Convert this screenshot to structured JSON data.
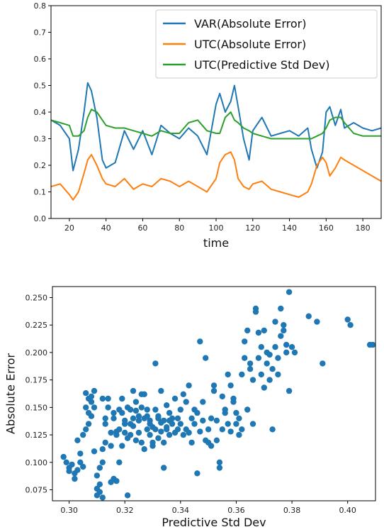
{
  "chart_data": [
    {
      "type": "line",
      "xlabel": "time",
      "ylabel": "",
      "xlim": [
        10,
        190
      ],
      "ylim": [
        0.0,
        0.8
      ],
      "xticks": [
        "20",
        "40",
        "60",
        "80",
        "100",
        "120",
        "140",
        "160",
        "180"
      ],
      "yticks": [
        "0.0",
        "0.1",
        "0.2",
        "0.3",
        "0.4",
        "0.5",
        "0.6",
        "0.7",
        "0.8"
      ],
      "legend_position": "top-right",
      "grid": false,
      "x": [
        10,
        15,
        20,
        22,
        25,
        28,
        30,
        32,
        35,
        38,
        40,
        45,
        50,
        55,
        60,
        65,
        70,
        75,
        80,
        85,
        90,
        95,
        100,
        102,
        105,
        108,
        110,
        112,
        115,
        118,
        120,
        125,
        130,
        135,
        140,
        145,
        150,
        152,
        155,
        158,
        160,
        162,
        165,
        168,
        170,
        175,
        180,
        185,
        190
      ],
      "series": [
        {
          "name": "VAR(Absolute Error)",
          "color": "#1f77b4",
          "values": [
            0.37,
            0.35,
            0.3,
            0.18,
            0.26,
            0.4,
            0.51,
            0.48,
            0.38,
            0.22,
            0.19,
            0.21,
            0.33,
            0.26,
            0.33,
            0.24,
            0.35,
            0.32,
            0.3,
            0.34,
            0.31,
            0.24,
            0.43,
            0.47,
            0.4,
            0.44,
            0.5,
            0.42,
            0.3,
            0.22,
            0.33,
            0.38,
            0.31,
            0.32,
            0.33,
            0.31,
            0.34,
            0.26,
            0.19,
            0.25,
            0.4,
            0.42,
            0.35,
            0.41,
            0.34,
            0.36,
            0.34,
            0.33,
            0.34
          ]
        },
        {
          "name": "UTC(Absolute Error)",
          "color": "#ff7f0e",
          "values": [
            0.12,
            0.13,
            0.09,
            0.07,
            0.1,
            0.17,
            0.22,
            0.24,
            0.2,
            0.15,
            0.13,
            0.12,
            0.15,
            0.11,
            0.13,
            0.12,
            0.15,
            0.14,
            0.12,
            0.14,
            0.12,
            0.1,
            0.15,
            0.21,
            0.24,
            0.25,
            0.22,
            0.15,
            0.12,
            0.11,
            0.13,
            0.14,
            0.11,
            0.1,
            0.09,
            0.08,
            0.1,
            0.13,
            0.2,
            0.23,
            0.21,
            0.16,
            0.19,
            0.23,
            0.22,
            0.2,
            0.18,
            0.16,
            0.14
          ]
        },
        {
          "name": "UTC(Predictive Std Dev)",
          "color": "#2ca02c",
          "values": [
            0.37,
            0.36,
            0.35,
            0.31,
            0.31,
            0.33,
            0.38,
            0.41,
            0.4,
            0.37,
            0.35,
            0.34,
            0.34,
            0.33,
            0.32,
            0.31,
            0.33,
            0.32,
            0.32,
            0.36,
            0.37,
            0.33,
            0.32,
            0.32,
            0.38,
            0.4,
            0.37,
            0.36,
            0.34,
            0.33,
            0.32,
            0.31,
            0.3,
            0.3,
            0.3,
            0.3,
            0.3,
            0.3,
            0.31,
            0.32,
            0.34,
            0.37,
            0.38,
            0.38,
            0.36,
            0.32,
            0.31,
            0.31,
            0.31
          ]
        }
      ]
    },
    {
      "type": "scatter",
      "xlabel": "Predictive Std Dev",
      "ylabel": "Absolute Error",
      "xlim": [
        0.294,
        0.41
      ],
      "ylim": [
        0.065,
        0.26
      ],
      "xticks": [
        "0.30",
        "0.32",
        "0.34",
        "0.36",
        "0.38",
        "0.40"
      ],
      "yticks": [
        "0.075",
        "0.100",
        "0.125",
        "0.150",
        "0.175",
        "0.200",
        "0.225",
        "0.250"
      ],
      "grid": false,
      "color": "#1f77b4",
      "points": [
        [
          0.298,
          0.105
        ],
        [
          0.299,
          0.1
        ],
        [
          0.3,
          0.095
        ],
        [
          0.3,
          0.092
        ],
        [
          0.301,
          0.098
        ],
        [
          0.302,
          0.09
        ],
        [
          0.302,
          0.085
        ],
        [
          0.303,
          0.093
        ],
        [
          0.303,
          0.12
        ],
        [
          0.304,
          0.108
        ],
        [
          0.304,
          0.1
        ],
        [
          0.305,
          0.096
        ],
        [
          0.305,
          0.125
        ],
        [
          0.306,
          0.13
        ],
        [
          0.306,
          0.15
        ],
        [
          0.306,
          0.163
        ],
        [
          0.307,
          0.135
        ],
        [
          0.307,
          0.158
        ],
        [
          0.307,
          0.145
        ],
        [
          0.308,
          0.16
        ],
        [
          0.308,
          0.155
        ],
        [
          0.308,
          0.142
        ],
        [
          0.309,
          0.15
        ],
        [
          0.309,
          0.165
        ],
        [
          0.309,
          0.11
        ],
        [
          0.31,
          0.088
        ],
        [
          0.31,
          0.076
        ],
        [
          0.31,
          0.07
        ],
        [
          0.311,
          0.08
        ],
        [
          0.311,
          0.073
        ],
        [
          0.311,
          0.095
        ],
        [
          0.312,
          0.068
        ],
        [
          0.312,
          0.1
        ],
        [
          0.312,
          0.112
        ],
        [
          0.312,
          0.158
        ],
        [
          0.313,
          0.14
        ],
        [
          0.313,
          0.118
        ],
        [
          0.313,
          0.135
        ],
        [
          0.314,
          0.15
        ],
        [
          0.314,
          0.158
        ],
        [
          0.315,
          0.115
        ],
        [
          0.315,
          0.127
        ],
        [
          0.315,
          0.082
        ],
        [
          0.316,
          0.085
        ],
        [
          0.316,
          0.145
        ],
        [
          0.316,
          0.14
        ],
        [
          0.317,
          0.128
        ],
        [
          0.317,
          0.083
        ],
        [
          0.317,
          0.125
        ],
        [
          0.318,
          0.13
        ],
        [
          0.318,
          0.148
        ],
        [
          0.318,
          0.1
        ],
        [
          0.319,
          0.145
        ],
        [
          0.319,
          0.115
        ],
        [
          0.319,
          0.158
        ],
        [
          0.32,
          0.135
        ],
        [
          0.32,
          0.138
        ],
        [
          0.32,
          0.127
        ],
        [
          0.321,
          0.07
        ],
        [
          0.321,
          0.15
        ],
        [
          0.321,
          0.122
        ],
        [
          0.322,
          0.148
        ],
        [
          0.322,
          0.135
        ],
        [
          0.322,
          0.125
        ],
        [
          0.323,
          0.165
        ],
        [
          0.323,
          0.14
        ],
        [
          0.323,
          0.133
        ],
        [
          0.324,
          0.12
        ],
        [
          0.324,
          0.147
        ],
        [
          0.324,
          0.155
        ],
        [
          0.325,
          0.127
        ],
        [
          0.325,
          0.138
        ],
        [
          0.325,
          0.142
        ],
        [
          0.326,
          0.162
        ],
        [
          0.326,
          0.15
        ],
        [
          0.326,
          0.118
        ],
        [
          0.327,
          0.14
        ],
        [
          0.327,
          0.112
        ],
        [
          0.327,
          0.162
        ],
        [
          0.328,
          0.148
        ],
        [
          0.328,
          0.13
        ],
        [
          0.328,
          0.142
        ],
        [
          0.329,
          0.138
        ],
        [
          0.329,
          0.135
        ],
        [
          0.329,
          0.125
        ],
        [
          0.33,
          0.115
        ],
        [
          0.33,
          0.132
        ],
        [
          0.33,
          0.118
        ],
        [
          0.331,
          0.148
        ],
        [
          0.331,
          0.13
        ],
        [
          0.331,
          0.19
        ],
        [
          0.332,
          0.142
        ],
        [
          0.332,
          0.14
        ],
        [
          0.332,
          0.122
        ],
        [
          0.333,
          0.136
        ],
        [
          0.333,
          0.165
        ],
        [
          0.333,
          0.128
        ],
        [
          0.334,
          0.138
        ],
        [
          0.334,
          0.118
        ],
        [
          0.334,
          0.095
        ],
        [
          0.335,
          0.132
        ],
        [
          0.335,
          0.13
        ],
        [
          0.335,
          0.152
        ],
        [
          0.336,
          0.138
        ],
        [
          0.336,
          0.145
        ],
        [
          0.336,
          0.125
        ],
        [
          0.337,
          0.14
        ],
        [
          0.337,
          0.135
        ],
        [
          0.338,
          0.127
        ],
        [
          0.338,
          0.158
        ],
        [
          0.339,
          0.14
        ],
        [
          0.339,
          0.13
        ],
        [
          0.34,
          0.135
        ],
        [
          0.34,
          0.148
        ],
        [
          0.341,
          0.125
        ],
        [
          0.341,
          0.162
        ],
        [
          0.342,
          0.13
        ],
        [
          0.342,
          0.155
        ],
        [
          0.343,
          0.127
        ],
        [
          0.343,
          0.17
        ],
        [
          0.344,
          0.118
        ],
        [
          0.344,
          0.14
        ],
        [
          0.345,
          0.135
        ],
        [
          0.345,
          0.148
        ],
        [
          0.346,
          0.145
        ],
        [
          0.346,
          0.09
        ],
        [
          0.347,
          0.21
        ],
        [
          0.347,
          0.128
        ],
        [
          0.348,
          0.155
        ],
        [
          0.348,
          0.138
        ],
        [
          0.349,
          0.12
        ],
        [
          0.349,
          0.195
        ],
        [
          0.35,
          0.118
        ],
        [
          0.35,
          0.13
        ],
        [
          0.351,
          0.14
        ],
        [
          0.351,
          0.115
        ],
        [
          0.352,
          0.165
        ],
        [
          0.352,
          0.17
        ],
        [
          0.353,
          0.12
        ],
        [
          0.353,
          0.138
        ],
        [
          0.354,
          0.095
        ],
        [
          0.354,
          0.1
        ],
        [
          0.355,
          0.13
        ],
        [
          0.355,
          0.16
        ],
        [
          0.356,
          0.145
        ],
        [
          0.356,
          0.148
        ],
        [
          0.357,
          0.135
        ],
        [
          0.357,
          0.18
        ],
        [
          0.358,
          0.17
        ],
        [
          0.358,
          0.128
        ],
        [
          0.359,
          0.158
        ],
        [
          0.359,
          0.155
        ],
        [
          0.36,
          0.145
        ],
        [
          0.36,
          0.135
        ],
        [
          0.361,
          0.14
        ],
        [
          0.361,
          0.125
        ],
        [
          0.362,
          0.13
        ],
        [
          0.362,
          0.18
        ],
        [
          0.363,
          0.195
        ],
        [
          0.363,
          0.21
        ],
        [
          0.364,
          0.22
        ],
        [
          0.364,
          0.148
        ],
        [
          0.365,
          0.19
        ],
        [
          0.365,
          0.185
        ],
        [
          0.366,
          0.175
        ],
        [
          0.366,
          0.135
        ],
        [
          0.367,
          0.24
        ],
        [
          0.367,
          0.237
        ],
        [
          0.368,
          0.195
        ],
        [
          0.368,
          0.218
        ],
        [
          0.369,
          0.205
        ],
        [
          0.369,
          0.18
        ],
        [
          0.37,
          0.22
        ],
        [
          0.37,
          0.168
        ],
        [
          0.371,
          0.19
        ],
        [
          0.371,
          0.2
        ],
        [
          0.372,
          0.175
        ],
        [
          0.372,
          0.198
        ],
        [
          0.373,
          0.185
        ],
        [
          0.373,
          0.13
        ],
        [
          0.374,
          0.205
        ],
        [
          0.374,
          0.228
        ],
        [
          0.375,
          0.18
        ],
        [
          0.375,
          0.195
        ],
        [
          0.376,
          0.215
        ],
        [
          0.376,
          0.24
        ],
        [
          0.377,
          0.22
        ],
        [
          0.377,
          0.225
        ],
        [
          0.378,
          0.207
        ],
        [
          0.378,
          0.2
        ],
        [
          0.379,
          0.255
        ],
        [
          0.379,
          0.165
        ],
        [
          0.38,
          0.205
        ],
        [
          0.381,
          0.2
        ],
        [
          0.386,
          0.233
        ],
        [
          0.389,
          0.228
        ],
        [
          0.391,
          0.19
        ],
        [
          0.4,
          0.23
        ],
        [
          0.401,
          0.225
        ],
        [
          0.408,
          0.207
        ],
        [
          0.409,
          0.207
        ]
      ]
    }
  ]
}
